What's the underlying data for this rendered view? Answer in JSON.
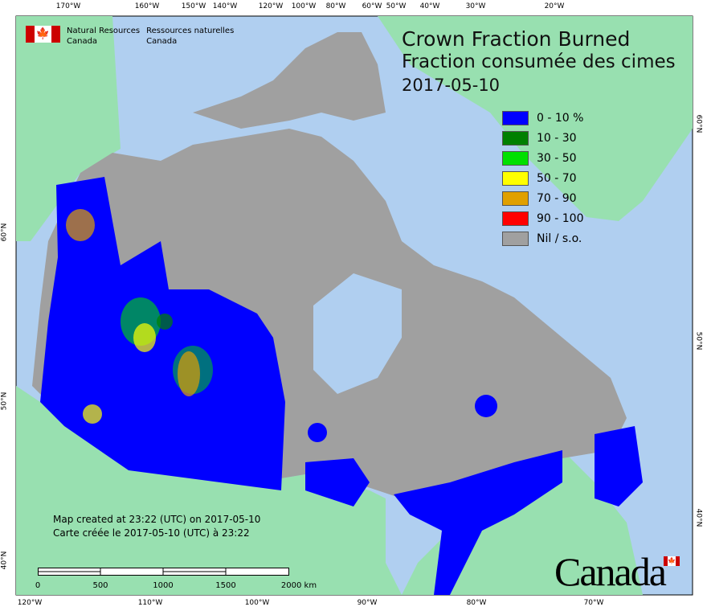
{
  "header": {
    "org_en_line1": "Natural Resources",
    "org_en_line2": "Canada",
    "org_fr_line1": "Ressources naturelles",
    "org_fr_line2": "Canada"
  },
  "title": {
    "en": "Crown Fraction Burned",
    "fr": "Fraction consumée des cimes",
    "date": "2017-05-10"
  },
  "legend": [
    {
      "label": "0 - 10 %",
      "color": "#0000ff"
    },
    {
      "label": "10 - 30",
      "color": "#008000"
    },
    {
      "label": "30 - 50",
      "color": "#00e000"
    },
    {
      "label": "50 - 70",
      "color": "#ffff00"
    },
    {
      "label": "70 - 90",
      "color": "#e0a000"
    },
    {
      "label": "90 - 100",
      "color": "#ff0000"
    },
    {
      "label": "Nil / s.o.",
      "color": "#a0a0a0"
    }
  ],
  "created": {
    "en": "Map created at 23:22 (UTC) on 2017-05-10",
    "fr": "Carte créée le 2017-05-10 (UTC) à 23:22"
  },
  "scale": {
    "labels": [
      "0",
      "500",
      "1000",
      "1500",
      "2000  km"
    ]
  },
  "ticks": {
    "top": [
      "170°W",
      "160°W",
      "150°W",
      "140°W",
      "120°W",
      "100°W",
      "80°W",
      "60°W",
      "50°W",
      "40°W",
      "30°W",
      "20°W"
    ],
    "bottom": [
      "120°W",
      "110°W",
      "100°W",
      "90°W",
      "80°W",
      "70°W"
    ],
    "left": [
      "60°N",
      "50°N",
      "40°N"
    ],
    "right": [
      "60°N",
      "50°N",
      "40°N"
    ]
  },
  "wordmark": "Canada",
  "colors": {
    "water": "#b0cff0",
    "foreign_land": "#98e0b0",
    "nil": "#a0a0a0"
  }
}
